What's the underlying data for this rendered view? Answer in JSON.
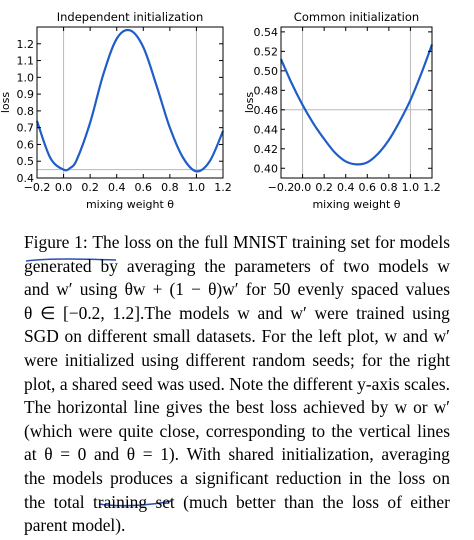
{
  "chart_data": [
    {
      "type": "line",
      "title": "Independent initialization",
      "xlabel": "mixing weight θ",
      "ylabel": "loss",
      "xlim": [
        -0.2,
        1.2
      ],
      "ylim": [
        0.4,
        1.3
      ],
      "xticks": [
        "−0.2",
        "0.0",
        "0.2",
        "0.4",
        "0.6",
        "0.8",
        "1.0",
        "1.2"
      ],
      "yticks": [
        "0.4",
        "0.5",
        "0.6",
        "0.7",
        "0.8",
        "0.9",
        "1.0",
        "1.1",
        "1.2"
      ],
      "grid": false,
      "reference_lines": {
        "vertical": [
          0.0,
          1.0
        ],
        "horizontal": 0.45
      },
      "series": [
        {
          "x": [
            -0.2,
            -0.1,
            0.0,
            0.05,
            0.1,
            0.2,
            0.3,
            0.4,
            0.5,
            0.6,
            0.7,
            0.8,
            0.9,
            1.0,
            1.1,
            1.2
          ],
          "values": [
            0.74,
            0.52,
            0.45,
            0.46,
            0.51,
            0.73,
            1.02,
            1.23,
            1.28,
            1.18,
            0.95,
            0.7,
            0.52,
            0.44,
            0.5,
            0.68
          ]
        }
      ]
    },
    {
      "type": "line",
      "title": "Common initialization",
      "xlabel": "mixing weight θ",
      "ylabel": "loss",
      "xlim": [
        -0.2,
        1.2
      ],
      "ylim": [
        0.39,
        0.545
      ],
      "xticks": [
        "−0.2",
        "0.0",
        "0.2",
        "0.4",
        "0.6",
        "0.8",
        "1.0",
        "1.2"
      ],
      "yticks": [
        "0.40",
        "0.42",
        "0.44",
        "0.46",
        "0.48",
        "0.50",
        "0.52",
        "0.54"
      ],
      "grid": false,
      "reference_lines": {
        "vertical": [
          0.0,
          1.0
        ],
        "horizontal": 0.46
      },
      "series": [
        {
          "x": [
            -0.2,
            -0.1,
            0.0,
            0.1,
            0.2,
            0.3,
            0.4,
            0.5,
            0.6,
            0.7,
            0.8,
            0.9,
            1.0,
            1.1,
            1.2
          ],
          "values": [
            0.512,
            0.487,
            0.465,
            0.446,
            0.43,
            0.416,
            0.407,
            0.404,
            0.406,
            0.415,
            0.429,
            0.448,
            0.47,
            0.497,
            0.527
          ]
        }
      ]
    }
  ],
  "caption": {
    "lines": [
      "Figure 1: The loss on the full MNIST training set for models",
      "generated by averaging the parameters of two models w",
      "and w′ using θw + (1 − θ)w′ for 50 evenly spaced values",
      "θ ∈ [−0.2, 1.2].The models w and w′ were trained using",
      "SGD on different small datasets. For the left plot, w and w′",
      "were initialized using different random seeds; for the right",
      "plot, a shared seed was used. Note the different y-axis scales.",
      "The horizontal line gives the best loss achieved by w or w′",
      "(which were quite close, corresponding to the vertical lines",
      "at θ = 0 and θ = 1). With shared initialization, averaging",
      "the models produces a significant reduction in the loss on",
      "the total training set (much better than the loss of either",
      "parent model)."
    ]
  },
  "annotations": {
    "underline_color": "#2a4fae"
  }
}
